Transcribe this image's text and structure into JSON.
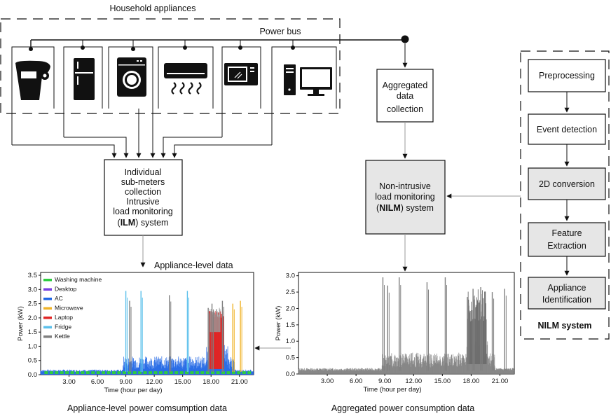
{
  "household_label": "Household appliances",
  "power_bus_label": "Power bus",
  "aggregated_box": [
    "Aggregated",
    "data",
    "collection"
  ],
  "ilm_box": {
    "lines": [
      "Individual",
      "sub-meters",
      "collection",
      "Intrusive",
      "load monitoring"
    ],
    "last_open": "(",
    "last_bold": "ILM",
    "last_close": ") system"
  },
  "nilm_box": {
    "lines": [
      "Non-intrusive",
      "load monitoring"
    ],
    "last_open": "(",
    "last_bold": "NILM",
    "last_close": ") system"
  },
  "nilm_steps": [
    "Preprocessing",
    "Event detection",
    "2D conversion",
    "Feature",
    "Extraction",
    "Appliance",
    "Identification"
  ],
  "nilm_system_label": "NILM system",
  "appliance_level_label": "Appliance-level data",
  "caption_left": "Appliance-level power comsumption data",
  "caption_right": "Aggregated power consumption data",
  "appliances": [
    "kitchen-mixer",
    "refrigerator",
    "washing-machine",
    "air-conditioner",
    "microwave",
    "desktop-computer"
  ],
  "chart_data": [
    {
      "type": "area",
      "xlabel": "Time (hour per day)",
      "ylabel": "Power (kW)",
      "xlim": [
        0,
        22.5
      ],
      "ylim": [
        0,
        3.6
      ],
      "xticks": [
        "3.00",
        "6.00",
        "9.00",
        "12.00",
        "15.00",
        "18.00",
        "21.00"
      ],
      "xtick_values": [
        3,
        6,
        9,
        12,
        15,
        18,
        21
      ],
      "yticks": [
        "0.0",
        "0.5",
        "1.0",
        "1.5",
        "2.0",
        "2.5",
        "3.0",
        "3.5"
      ],
      "ytick_values": [
        0,
        0.5,
        1.0,
        1.5,
        2.0,
        2.5,
        3.0,
        3.5
      ],
      "legend_placement": "top-left",
      "series": [
        {
          "name": "Washing machine",
          "color": "#2ecc40"
        },
        {
          "name": "Desktop",
          "color": "#7a3fe0"
        },
        {
          "name": "AC",
          "color": "#1f66e5"
        },
        {
          "name": "Microwave",
          "color": "#f0b429"
        },
        {
          "name": "Laptop",
          "color": "#e02525"
        },
        {
          "name": "Fridge",
          "color": "#5bc0eb"
        },
        {
          "name": "Kettle",
          "color": "#7f7f7f"
        }
      ],
      "spikes": [
        {
          "x": 9.0,
          "y": 2.95,
          "color": "#5bc0eb"
        },
        {
          "x": 9.4,
          "y": 2.6,
          "color": "#7f7f7f"
        },
        {
          "x": 10.6,
          "y": 2.95,
          "color": "#5bc0eb"
        },
        {
          "x": 13.6,
          "y": 2.8,
          "color": "#7f7f7f"
        },
        {
          "x": 15.5,
          "y": 2.95,
          "color": "#5bc0eb"
        },
        {
          "x": 17.7,
          "y": 2.35,
          "color": "#7f7f7f"
        },
        {
          "x": 18.1,
          "y": 2.5,
          "color": "#7f7f7f"
        },
        {
          "x": 19.2,
          "y": 2.6,
          "color": "#7f7f7f"
        },
        {
          "x": 20.3,
          "y": 2.5,
          "color": "#f0b429"
        },
        {
          "x": 21.1,
          "y": 2.6,
          "color": "#f0b429"
        }
      ]
    },
    {
      "type": "area",
      "xlabel": "Time (hour per day)",
      "ylabel": "Power (kW)",
      "xlim": [
        0,
        22.5
      ],
      "ylim": [
        0,
        3.1
      ],
      "xticks": [
        "3.00",
        "6.00",
        "9.00",
        "12.00",
        "15.00",
        "18.00",
        "21.00"
      ],
      "xtick_values": [
        3,
        6,
        9,
        12,
        15,
        18,
        21
      ],
      "yticks": [
        "0.0",
        "0.5",
        "1.0",
        "1.5",
        "2.0",
        "2.5",
        "3.0"
      ],
      "ytick_values": [
        0,
        0.5,
        1.0,
        1.5,
        2.0,
        2.5,
        3.0
      ],
      "series": [
        {
          "color": "#808080"
        }
      ],
      "spikes": [
        {
          "x": 8.8,
          "y": 2.95,
          "color": "#808080"
        },
        {
          "x": 9.3,
          "y": 2.7,
          "color": "#808080"
        },
        {
          "x": 10.5,
          "y": 2.95,
          "color": "#808080"
        },
        {
          "x": 13.4,
          "y": 2.8,
          "color": "#808080"
        },
        {
          "x": 15.3,
          "y": 2.95,
          "color": "#808080"
        },
        {
          "x": 17.6,
          "y": 2.35,
          "color": "#808080"
        },
        {
          "x": 18.2,
          "y": 2.6,
          "color": "#808080"
        },
        {
          "x": 19.0,
          "y": 2.65,
          "color": "#808080"
        },
        {
          "x": 20.2,
          "y": 2.5,
          "color": "#808080"
        },
        {
          "x": 21.5,
          "y": 2.6,
          "color": "#808080"
        }
      ]
    }
  ]
}
